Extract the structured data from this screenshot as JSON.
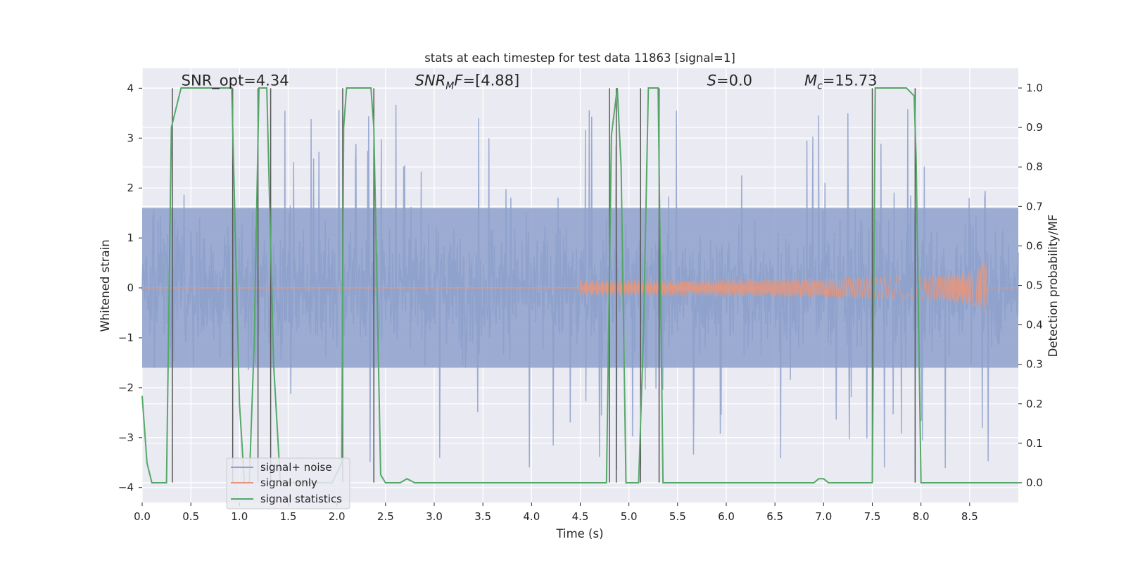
{
  "chart_data": {
    "type": "line",
    "title": "stats at each timestep for test data 11863 [signal=1]",
    "xlabel": "Time (s)",
    "ylabel_left": "Whitened strain",
    "ylabel_right": "Detection probability/MF",
    "xlim": [
      0.0,
      9.0
    ],
    "ylim_left": [
      -4.3,
      4.4
    ],
    "ylim_right": [
      -0.05,
      1.05
    ],
    "xticks": [
      0.0,
      0.5,
      1.0,
      1.5,
      2.0,
      2.5,
      3.0,
      3.5,
      4.0,
      4.5,
      5.0,
      5.5,
      6.0,
      6.5,
      7.0,
      7.5,
      8.0,
      8.5
    ],
    "xtick_labels": [
      "0.0",
      "0.5",
      "1.0",
      "1.5",
      "2.0",
      "2.5",
      "3.0",
      "3.5",
      "4.0",
      "4.5",
      "5.0",
      "5.5",
      "6.0",
      "6.5",
      "7.0",
      "7.5",
      "8.0",
      "8.5"
    ],
    "yticks_left": [
      -4,
      -3,
      -2,
      -1,
      0,
      1,
      2,
      3,
      4
    ],
    "ytick_labels_left": [
      "−4",
      "−3",
      "−2",
      "−1",
      "0",
      "1",
      "2",
      "3",
      "4"
    ],
    "yticks_right": [
      0.0,
      0.1,
      0.2,
      0.3,
      0.4,
      0.5,
      0.6,
      0.7,
      0.8,
      0.9,
      1.0
    ],
    "ytick_labels_right": [
      "0.0",
      "0.1",
      "0.2",
      "0.3",
      "0.4",
      "0.5",
      "0.6",
      "0.7",
      "0.8",
      "0.9",
      "1.0"
    ],
    "annotations": [
      {
        "id": "snr-opt",
        "text": "SNR_opt=4.34",
        "x": 0.2,
        "y": 4.1
      },
      {
        "id": "snr-mf",
        "text": "SNR_MF=[4.88]",
        "x": 2.6,
        "y": 4.1
      },
      {
        "id": "s-value",
        "text": "S=0.0",
        "x": 5.6,
        "y": 4.1
      },
      {
        "id": "mc-value",
        "text": "M_c=15.73",
        "x": 6.6,
        "y": 4.1
      }
    ],
    "series": [
      {
        "name": "signal+ noise",
        "color": "#8da0cb",
        "axis": "left",
        "style": "noise",
        "bulk_amplitude": 1.6,
        "outlier_max": 3.7,
        "outlier_min": -3.9,
        "n_samples": 1800
      },
      {
        "name": "signal only",
        "color": "#e5967c",
        "axis": "left",
        "style": "chirp",
        "start": 4.5,
        "peak_time": 8.68,
        "peak_amplitude": 0.9
      },
      {
        "name": "signal statistics",
        "color": "#55a868",
        "axis": "right",
        "x": [
          0.0,
          0.05,
          0.1,
          0.2,
          0.25,
          0.3,
          0.4,
          0.5,
          0.6,
          0.7,
          0.85,
          0.92,
          0.95,
          1.0,
          1.05,
          1.1,
          1.15,
          1.2,
          1.25,
          1.28,
          1.32,
          1.35,
          1.42,
          1.45,
          1.55,
          1.65,
          1.75,
          1.85,
          1.95,
          2.05,
          2.07,
          2.1,
          2.13,
          2.2,
          2.3,
          2.35,
          2.38,
          2.45,
          2.5,
          2.55,
          2.65,
          2.72,
          2.8,
          2.9,
          3.0,
          3.5,
          4.0,
          4.5,
          4.77,
          4.82,
          4.88,
          4.92,
          4.97,
          5.03,
          5.1,
          5.15,
          5.2,
          5.3,
          5.35,
          5.45,
          5.5,
          6.0,
          6.5,
          6.9,
          6.95,
          7.0,
          7.05,
          7.2,
          7.4,
          7.5,
          7.53,
          7.56,
          7.6,
          7.7,
          7.85,
          7.93,
          7.95,
          8.0,
          8.05,
          8.5,
          9.0
        ],
        "y": [
          0.22,
          0.05,
          0.0,
          0.0,
          0.0,
          0.9,
          1.0,
          1.0,
          1.0,
          1.0,
          1.0,
          1.0,
          0.7,
          0.2,
          0.0,
          0.0,
          0.35,
          1.0,
          1.0,
          1.0,
          0.6,
          0.3,
          0.0,
          0.0,
          0.0,
          0.0,
          0.0,
          0.0,
          0.0,
          0.05,
          0.9,
          1.0,
          1.0,
          1.0,
          1.0,
          1.0,
          0.9,
          0.02,
          0.0,
          0.0,
          0.0,
          0.01,
          0.0,
          0.0,
          0.0,
          0.0,
          0.0,
          0.0,
          0.0,
          0.88,
          1.0,
          0.8,
          0.0,
          0.0,
          0.0,
          0.38,
          1.0,
          1.0,
          0.0,
          0.0,
          0.0,
          0.0,
          0.0,
          0.0,
          0.01,
          0.01,
          0.0,
          0.0,
          0.0,
          0.0,
          1.0,
          1.0,
          1.0,
          1.0,
          1.0,
          0.98,
          0.82,
          0.0,
          0.0,
          0.0,
          0.0
        ]
      }
    ],
    "vertical_lines": [
      0.31,
      0.93,
      1.19,
      1.32,
      2.06,
      2.38,
      4.8,
      4.87,
      5.12,
      5.31,
      7.5,
      7.94
    ],
    "vertical_line_range_left": [
      -3.9,
      4.0
    ],
    "legend": {
      "placement": "lower-left",
      "entries": [
        "signal+ noise",
        "signal only",
        "signal statistics"
      ]
    },
    "grid": true
  }
}
